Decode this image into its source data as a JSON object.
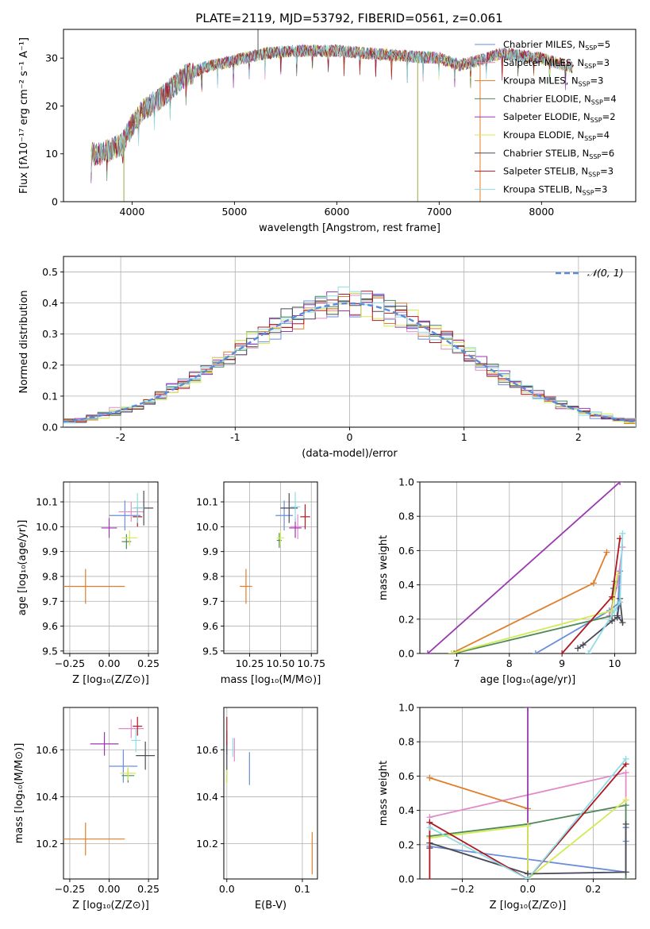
{
  "figure_title": "PLATE=2119, MJD=53792, FIBERID=0561, z=0.061",
  "model_colors": [
    "#6a8ed8",
    "#e08cc8",
    "#e07e2a",
    "#4e8a58",
    "#9a38b0",
    "#d4ea56",
    "#4a4a58",
    "#b01820",
    "#8fdde6"
  ],
  "chart_data": [
    {
      "id": "spectrum",
      "type": "line",
      "title": "PLATE=2119, MJD=53792, FIBERID=0561, z=0.061",
      "xlabel": "wavelength [Angstrom, rest frame]",
      "ylabel": "Flux [fλ10⁻¹⁷ erg cm⁻² s⁻¹ A⁻¹]",
      "xlim": [
        3330,
        8920
      ],
      "ylim": [
        0,
        36
      ],
      "xticks": [
        4000,
        5000,
        6000,
        7000,
        8000
      ],
      "yticks": [
        0,
        10,
        20,
        30
      ],
      "legend_position": "right",
      "legend": [
        {
          "label": "Chabrier MILES, N",
          "sub": "SSP",
          "suffix": "=5"
        },
        {
          "label": "Salpeter MILES, N",
          "sub": "SSP",
          "suffix": "=3"
        },
        {
          "label": "Kroupa MILES, N",
          "sub": "SSP",
          "suffix": "=3"
        },
        {
          "label": "Chabrier ELODIE, N",
          "sub": "SSP",
          "suffix": "=4"
        },
        {
          "label": "Salpeter ELODIE, N",
          "sub": "SSP",
          "suffix": "=2"
        },
        {
          "label": "Kroupa ELODIE, N",
          "sub": "SSP",
          "suffix": "=4"
        },
        {
          "label": "Chabrier STELIB, N",
          "sub": "SSP",
          "suffix": "=6"
        },
        {
          "label": "Salpeter STELIB, N",
          "sub": "SSP",
          "suffix": "=3"
        },
        {
          "label": "Kroupa STELIB, N",
          "sub": "SSP",
          "suffix": "=3"
        }
      ],
      "spectrum_range": [
        3600,
        8300
      ],
      "continuum_nodes": {
        "x": [
          3600,
          3700,
          3900,
          4000,
          4100,
          4300,
          4500,
          4700,
          5000,
          5300,
          5600,
          6000,
          6300,
          6600,
          7000,
          7200,
          7400,
          7600,
          8000,
          8300
        ],
        "y": [
          10,
          10,
          12,
          16,
          19,
          22,
          26,
          28,
          29.5,
          31,
          31.5,
          31.5,
          31,
          30.5,
          30,
          28.5,
          29.5,
          31,
          30,
          28
        ]
      },
      "spikes": [
        {
          "x": 5230,
          "ymax": 36
        },
        {
          "x": 3920,
          "ymin": 0
        },
        {
          "x": 6790,
          "ymin": 0
        },
        {
          "x": 7400,
          "ymin": 0
        }
      ]
    },
    {
      "id": "residuals",
      "type": "histogram",
      "xlabel": "(data-model)/error",
      "ylabel": "Normed distribution",
      "xlim": [
        -2.5,
        2.5
      ],
      "ylim": [
        0,
        0.55
      ],
      "xticks": [
        -2,
        -1,
        0,
        1,
        2
      ],
      "yticks": [
        0.0,
        0.1,
        0.2,
        0.3,
        0.4,
        0.5
      ],
      "bin_width": 0.1,
      "grid": true,
      "reference_curve": "N(0,1)",
      "legend": "𝒩(0, 1)",
      "legend_position": "top-right"
    },
    {
      "id": "age-vs-Z",
      "type": "errorbar",
      "xlabel": "Z [log₁₀(Z/Z⊙)]",
      "ylabel": "age  [log₁₀(age/yr)]",
      "xlim": [
        -0.29,
        0.31
      ],
      "ylim": [
        9.49,
        10.18
      ],
      "xticks": [
        -0.25,
        0.0,
        0.25
      ],
      "yticks": [
        9.5,
        9.6,
        9.7,
        9.8,
        9.9,
        10.0,
        10.1
      ],
      "points": [
        {
          "x": 0.1,
          "y": 10.045,
          "xerr": 0.1,
          "yerr": 0.06
        },
        {
          "x": 0.14,
          "y": 10.06,
          "xerr": 0.08,
          "yerr": 0.04
        },
        {
          "x": -0.15,
          "y": 9.76,
          "xerr": 0.25,
          "yerr": 0.07
        },
        {
          "x": 0.11,
          "y": 9.94,
          "xerr": 0.03,
          "yerr": 0.03
        },
        {
          "x": 0.0,
          "y": 9.995,
          "xerr": 0.05,
          "yerr": 0.04
        },
        {
          "x": 0.13,
          "y": 9.955,
          "xerr": 0.05,
          "yerr": 0.03
        },
        {
          "x": 0.22,
          "y": 10.075,
          "xerr": 0.06,
          "yerr": 0.07
        },
        {
          "x": 0.18,
          "y": 10.04,
          "xerr": 0.03,
          "yerr": 0.04
        },
        {
          "x": 0.18,
          "y": 10.075,
          "xerr": 0.04,
          "yerr": 0.06
        }
      ]
    },
    {
      "id": "age-vs-mass",
      "type": "errorbar",
      "xlabel": "mass [log₁₀(M/M⊙)]",
      "ylabel": "",
      "xlim": [
        10.04,
        10.8
      ],
      "ylim": [
        9.49,
        10.18
      ],
      "xticks": [
        10.25,
        10.5,
        10.75
      ],
      "yticks": [
        9.5,
        9.6,
        9.7,
        9.8,
        9.9,
        10.0,
        10.1
      ],
      "points": [
        {
          "x": 10.53,
          "y": 10.045,
          "xerr": 0.07,
          "yerr": 0.06
        },
        {
          "x": 10.64,
          "y": 10.0,
          "xerr": 0.06,
          "yerr": 0.05
        },
        {
          "x": 10.22,
          "y": 9.76,
          "xerr": 0.05,
          "yerr": 0.07
        },
        {
          "x": 10.49,
          "y": 9.945,
          "xerr": 0.02,
          "yerr": 0.03
        },
        {
          "x": 10.62,
          "y": 9.995,
          "xerr": 0.05,
          "yerr": 0.04
        },
        {
          "x": 10.5,
          "y": 9.955,
          "xerr": 0.03,
          "yerr": 0.03
        },
        {
          "x": 10.57,
          "y": 10.075,
          "xerr": 0.07,
          "yerr": 0.06
        },
        {
          "x": 10.7,
          "y": 10.04,
          "xerr": 0.04,
          "yerr": 0.05
        },
        {
          "x": 10.62,
          "y": 10.08,
          "xerr": 0.04,
          "yerr": 0.06
        }
      ]
    },
    {
      "id": "weight-vs-age",
      "type": "line",
      "xlabel": "age  [log₁₀(age/yr)]",
      "ylabel": "mass weight",
      "xlim": [
        6.3,
        10.4
      ],
      "ylim": [
        0,
        1.0
      ],
      "xticks": [
        7,
        8,
        9,
        10
      ],
      "yticks": [
        0.0,
        0.2,
        0.4,
        0.6,
        0.8,
        1.0
      ],
      "series": [
        {
          "x": [
            8.5,
            9.9,
            10.1,
            10.1,
            10.05
          ],
          "y": [
            0.0,
            0.25,
            0.3,
            0.48,
            0.22
          ]
        },
        {
          "x": [
            9.9,
            10.05,
            10.15
          ],
          "y": [
            0.22,
            0.4,
            0.62
          ]
        },
        {
          "x": [
            6.9,
            9.6,
            9.85
          ],
          "y": [
            0.0,
            0.41,
            0.59
          ]
        },
        {
          "x": [
            6.95,
            9.95,
            9.98,
            10.0
          ],
          "y": [
            0.0,
            0.22,
            0.38,
            0.42
          ]
        },
        {
          "x": [
            6.45,
            10.1
          ],
          "y": [
            0.0,
            1.0
          ]
        },
        {
          "x": [
            6.9,
            9.95,
            9.98,
            10.05
          ],
          "y": [
            0.0,
            0.25,
            0.32,
            0.46
          ]
        },
        {
          "x": [
            9.3,
            9.4,
            9.95,
            10.05,
            10.1,
            10.15,
            10.05
          ],
          "y": [
            0.03,
            0.05,
            0.19,
            0.21,
            0.32,
            0.18,
            0.22
          ]
        },
        {
          "x": [
            9.0,
            9.95,
            10.1
          ],
          "y": [
            0.0,
            0.33,
            0.67
          ]
        },
        {
          "x": [
            9.5,
            10.0,
            10.1,
            10.15
          ],
          "y": [
            0.0,
            0.25,
            0.3,
            0.7
          ]
        }
      ]
    },
    {
      "id": "mass-vs-Z",
      "type": "errorbar",
      "xlabel": "Z [log₁₀(Z/Z⊙)]",
      "ylabel": "mass [log₁₀(M/M⊙)]",
      "xlim": [
        -0.29,
        0.31
      ],
      "ylim": [
        10.05,
        10.78
      ],
      "xticks": [
        -0.25,
        0.0,
        0.25
      ],
      "yticks": [
        10.2,
        10.4,
        10.6
      ],
      "points": [
        {
          "x": 0.09,
          "y": 10.53,
          "xerr": 0.09,
          "yerr": 0.07
        },
        {
          "x": 0.14,
          "y": 10.69,
          "xerr": 0.08,
          "yerr": 0.04
        },
        {
          "x": -0.15,
          "y": 10.22,
          "xerr": 0.25,
          "yerr": 0.07
        },
        {
          "x": 0.12,
          "y": 10.49,
          "xerr": 0.04,
          "yerr": 0.03
        },
        {
          "x": -0.03,
          "y": 10.625,
          "xerr": 0.09,
          "yerr": 0.05
        },
        {
          "x": 0.12,
          "y": 10.5,
          "xerr": 0.05,
          "yerr": 0.03
        },
        {
          "x": 0.23,
          "y": 10.575,
          "xerr": 0.06,
          "yerr": 0.06
        },
        {
          "x": 0.18,
          "y": 10.7,
          "xerr": 0.03,
          "yerr": 0.04
        },
        {
          "x": 0.17,
          "y": 10.64,
          "xerr": 0.03,
          "yerr": 0.05
        }
      ]
    },
    {
      "id": "mass-vs-ebv",
      "type": "errorbar",
      "xlabel": "E(B-V)",
      "ylabel": "",
      "xlim": [
        -0.004,
        0.12
      ],
      "ylim": [
        10.05,
        10.78
      ],
      "xticks": [
        0.0,
        0.1
      ],
      "yticks": [
        10.2,
        10.4,
        10.6
      ],
      "points": [
        {
          "x": 0.03,
          "y": 10.52,
          "xerr": 0.0,
          "yerr": 0.07
        },
        {
          "x": 0.01,
          "y": 10.6,
          "xerr": 0.0,
          "yerr": 0.05
        },
        {
          "x": 0.113,
          "y": 10.16,
          "xerr": 0.0,
          "yerr": 0.09
        },
        {
          "x": 0.0,
          "y": 10.49,
          "xerr": 0.0,
          "yerr": 0.03
        },
        {
          "x": 0.0,
          "y": 10.63,
          "xerr": 0.0,
          "yerr": 0.05
        },
        {
          "x": 0.0,
          "y": 10.49,
          "xerr": 0.0,
          "yerr": 0.04
        },
        {
          "x": 0.0,
          "y": 10.575,
          "xerr": 0.0,
          "yerr": 0.06
        },
        {
          "x": 0.0,
          "y": 10.68,
          "xerr": 0.0,
          "yerr": 0.06
        },
        {
          "x": 0.008,
          "y": 10.61,
          "xerr": 0.0,
          "yerr": 0.04
        }
      ]
    },
    {
      "id": "weight-vs-Z",
      "type": "line",
      "xlabel": "Z [log₁₀(Z/Z⊙)]",
      "ylabel": "mass weight",
      "xlim": [
        -0.33,
        0.33
      ],
      "ylim": [
        0,
        1.0
      ],
      "xticks": [
        -0.2,
        0.0,
        0.2
      ],
      "yticks": [
        0.0,
        0.2,
        0.4,
        0.6,
        0.8,
        1.0
      ],
      "series": [
        {
          "x": [
            -0.3,
            0.3,
            0.3,
            0.3
          ],
          "y": [
            0.19,
            0.04,
            0.22,
            0.3
          ]
        },
        {
          "x": [
            -0.3,
            0.3,
            0.3
          ],
          "y": [
            0.36,
            0.62,
            0.0
          ]
        },
        {
          "x": [
            -0.3,
            0.0
          ],
          "y": [
            0.59,
            0.41
          ]
        },
        {
          "x": [
            -0.3,
            0.0,
            0.3,
            0.3
          ],
          "y": [
            0.25,
            0.32,
            0.43,
            0.0
          ]
        },
        {
          "x": [
            0.0,
            0.0
          ],
          "y": [
            0.0,
            1.0
          ]
        },
        {
          "x": [
            -0.3,
            0.0,
            0.0,
            0.3
          ],
          "y": [
            0.24,
            0.31,
            0.0,
            0.46
          ]
        },
        {
          "x": [
            -0.3,
            -0.3,
            0.0,
            0.3,
            0.3
          ],
          "y": [
            0.18,
            0.21,
            0.03,
            0.04,
            0.32
          ]
        },
        {
          "x": [
            -0.3,
            -0.3,
            0.0,
            0.3
          ],
          "y": [
            0.0,
            0.33,
            0.0,
            0.67
          ]
        },
        {
          "x": [
            -0.3,
            0.0,
            0.3
          ],
          "y": [
            0.3,
            0.0,
            0.7
          ]
        }
      ]
    }
  ]
}
